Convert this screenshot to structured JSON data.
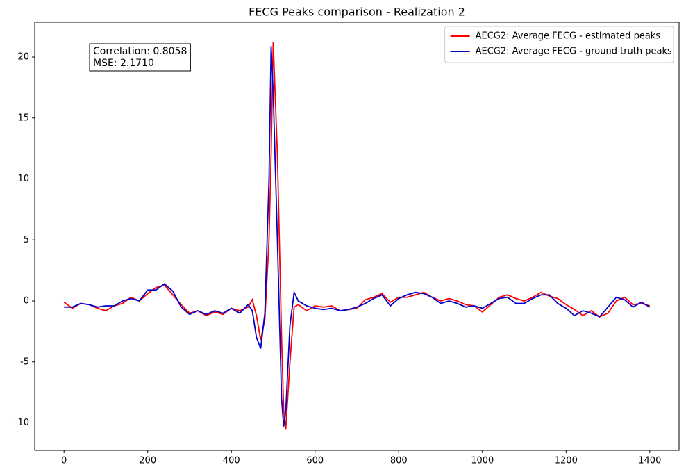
{
  "chart_data": {
    "type": "line",
    "title": "FECG Peaks comparison - Realization 2",
    "annotation": [
      "Correlation: 0.8058",
      "MSE: 2.1710"
    ],
    "legend": "upper right",
    "x": [
      0,
      20,
      40,
      60,
      80,
      100,
      120,
      140,
      160,
      180,
      200,
      220,
      240,
      260,
      280,
      300,
      320,
      340,
      360,
      380,
      400,
      420,
      440,
      450,
      460,
      470,
      480,
      490,
      495,
      500,
      510,
      520,
      525,
      530,
      540,
      550,
      560,
      580,
      600,
      620,
      640,
      660,
      680,
      700,
      720,
      740,
      760,
      780,
      800,
      820,
      840,
      860,
      880,
      900,
      920,
      940,
      960,
      980,
      1000,
      1020,
      1040,
      1060,
      1080,
      1100,
      1120,
      1140,
      1160,
      1180,
      1200,
      1220,
      1240,
      1260,
      1280,
      1300,
      1320,
      1340,
      1360,
      1380,
      1400
    ],
    "series": [
      {
        "name": "AECG2: Average FECG - estimated peaks",
        "color": "#ff0000",
        "values": [
          -0.1,
          -0.6,
          -0.2,
          -0.3,
          -0.6,
          -0.8,
          -0.4,
          -0.2,
          0.3,
          0,
          0.6,
          1.1,
          1.3,
          0.5,
          -0.3,
          -1.0,
          -0.8,
          -1.2,
          -0.9,
          -1.1,
          -0.6,
          -0.8,
          -0.5,
          0.1,
          -1.2,
          -3.2,
          -1.5,
          5,
          12,
          21.2,
          12,
          -3,
          -9,
          -10.5,
          -5,
          -0.5,
          -0.3,
          -0.8,
          -0.4,
          -0.5,
          -0.4,
          -0.8,
          -0.7,
          -0.6,
          0.1,
          0.3,
          0.6,
          -0.1,
          0.3,
          0.3,
          0.5,
          0.7,
          0.3,
          0,
          0.2,
          0,
          -0.3,
          -0.4,
          -0.9,
          -0.3,
          0.3,
          0.5,
          0.2,
          0,
          0.3,
          0.7,
          0.4,
          0.2,
          -0.3,
          -0.7,
          -1.2,
          -0.8,
          -1.3,
          -1.0,
          0,
          0.3,
          -0.3,
          -0.2,
          -0.4
        ]
      },
      {
        "name": "AECG2: Average FECG - ground truth peaks",
        "color": "#0000cc",
        "values": [
          -0.5,
          -0.5,
          -0.2,
          -0.3,
          -0.5,
          -0.4,
          -0.4,
          0,
          0.2,
          0,
          0.9,
          0.9,
          1.4,
          0.8,
          -0.5,
          -1.1,
          -0.8,
          -1.1,
          -0.8,
          -1.0,
          -0.6,
          -1.0,
          -0.3,
          -0.8,
          -3.0,
          -3.9,
          -1.0,
          10,
          20.9,
          17,
          5,
          -8,
          -10.3,
          -9,
          -2,
          0.7,
          0,
          -0.4,
          -0.6,
          -0.7,
          -0.6,
          -0.8,
          -0.7,
          -0.5,
          -0.2,
          0.2,
          0.5,
          -0.4,
          0.2,
          0.5,
          0.7,
          0.6,
          0.3,
          -0.2,
          0,
          -0.2,
          -0.5,
          -0.4,
          -0.6,
          -0.2,
          0.2,
          0.3,
          -0.2,
          -0.2,
          0.2,
          0.5,
          0.5,
          -0.2,
          -0.6,
          -1.2,
          -0.8,
          -1.0,
          -1.3,
          -0.5,
          0.3,
          0.1,
          -0.5,
          -0.1,
          -0.5
        ]
      }
    ],
    "xlim": [
      -70,
      1470
    ],
    "ylim": [
      -12.25,
      22.85
    ],
    "xticks": [
      0,
      200,
      400,
      600,
      800,
      1000,
      1200,
      1400
    ],
    "yticks": [
      -10,
      -5,
      0,
      5,
      10,
      15,
      20
    ]
  }
}
